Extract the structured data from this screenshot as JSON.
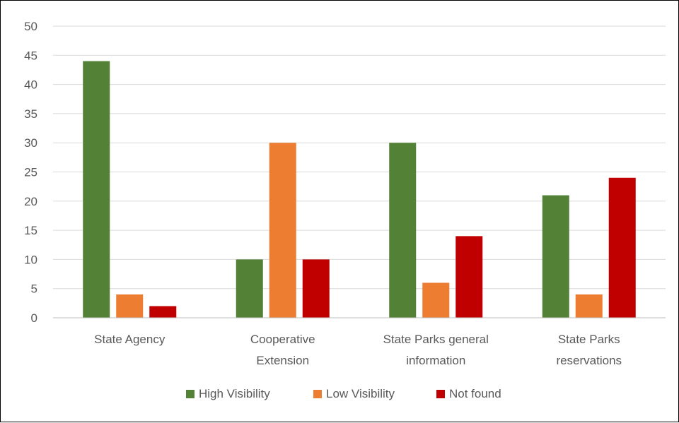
{
  "chart_data": {
    "type": "bar",
    "title": "",
    "xlabel": "",
    "ylabel": "",
    "ylim": [
      0,
      50
    ],
    "yticks": [
      0,
      5,
      10,
      15,
      20,
      25,
      30,
      35,
      40,
      45,
      50
    ],
    "grid": true,
    "legend_position": "bottom",
    "categories": [
      [
        "State Agency"
      ],
      [
        "Cooperative",
        "Extension"
      ],
      [
        "State Parks general",
        "information"
      ],
      [
        "State Parks",
        "reservations"
      ]
    ],
    "series": [
      {
        "name": "High Visibility",
        "color": "#538135",
        "values": [
          44,
          10,
          30,
          21
        ]
      },
      {
        "name": "Low Visibility",
        "color": "#ED7D31",
        "values": [
          4,
          30,
          6,
          4
        ]
      },
      {
        "name": "Not found",
        "color": "#C00000",
        "values": [
          2,
          10,
          14,
          24
        ]
      }
    ]
  }
}
